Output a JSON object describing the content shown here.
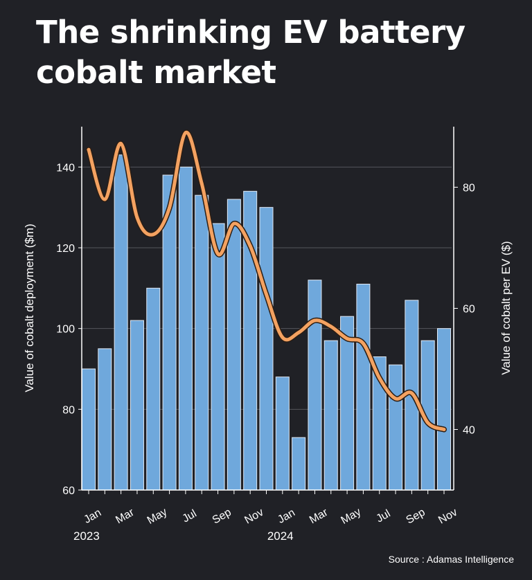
{
  "chart_data": {
    "type": "bar+line",
    "title": "The shrinking EV battery cobalt market",
    "source": "Source : Adamas Intelligence",
    "categories": [
      "Jan 2023",
      "Feb 2023",
      "Mar 2023",
      "Apr 2023",
      "May 2023",
      "Jun 2023",
      "Jul 2023",
      "Aug 2023",
      "Sep 2023",
      "Oct 2023",
      "Nov 2023",
      "Dec 2023",
      "Jan 2024",
      "Feb 2024",
      "Mar 2024",
      "Apr 2024",
      "May 2024",
      "Jun 2024",
      "Jul 2024",
      "Aug 2024",
      "Sep 2024",
      "Oct 2024",
      "Nov 2024"
    ],
    "x_tick_labels": [
      "Jan",
      "Mar",
      "May",
      "Jul",
      "Sep",
      "Nov",
      "Jan",
      "Mar",
      "May",
      "Jul",
      "Sep",
      "Nov"
    ],
    "x_year_labels": [
      "2023",
      "2024"
    ],
    "series": [
      {
        "type": "bar",
        "axis": "left",
        "color": "#6fa8dc",
        "values": [
          90,
          95,
          143,
          102,
          110,
          138,
          140,
          133,
          126,
          132,
          134,
          130,
          88,
          73,
          112,
          97,
          103,
          111,
          93,
          91,
          107,
          97,
          100
        ]
      },
      {
        "type": "line",
        "axis": "right",
        "color": "#f4a261",
        "smooth": true,
        "values": [
          86.2,
          78,
          87.2,
          75,
          72.2,
          76.6,
          89,
          80.6,
          69,
          74,
          70.3,
          62.3,
          55.2,
          56,
          58,
          57,
          55,
          54.2,
          48.5,
          45.1,
          46,
          41.1,
          40
        ]
      }
    ],
    "ylabel_left": "Value of cobalt deployment ($m)",
    "ylabel_right": "Value of cobalt per EV ($)",
    "ylim_left": [
      60,
      150
    ],
    "yticks_left": [
      60,
      80,
      100,
      120,
      140
    ],
    "ylim_right": [
      30,
      90
    ],
    "yticks_right": [
      40,
      60,
      80
    ],
    "grid": true,
    "legend": "none"
  },
  "colors": {
    "background": "#202126",
    "bar": "#6fa8dc",
    "line": "#f4a261",
    "text": "#ffffff"
  }
}
